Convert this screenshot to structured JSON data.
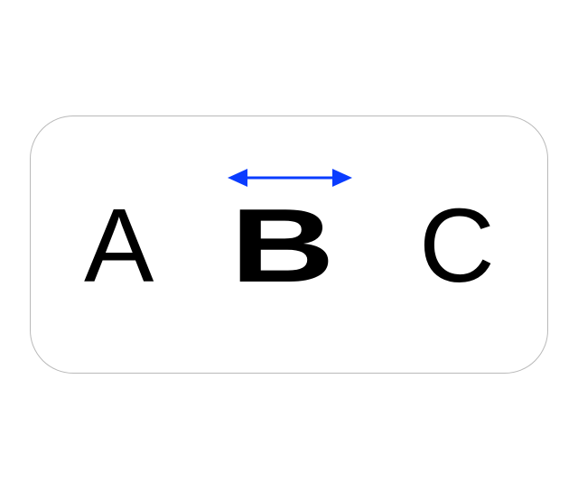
{
  "letters": {
    "left": "A",
    "middle": "B",
    "right": "C"
  },
  "arrow": {
    "icon": "double-headed-horizontal-arrow",
    "color": "#0a3cff"
  },
  "colors": {
    "text": "#000000",
    "panel_border": "#b9b9b9",
    "background": "#ffffff"
  }
}
